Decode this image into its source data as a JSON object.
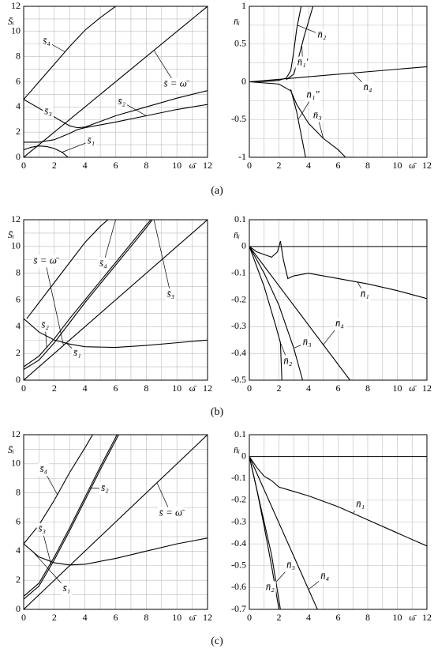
{
  "panel_labels": [
    "(a)",
    "(b)",
    "(c)"
  ],
  "chart_data": [
    {
      "type": "line",
      "ylabel": "S̄ᵢ",
      "xlabel": "ω̄",
      "xlim": [
        0,
        12
      ],
      "ylim": [
        0,
        12
      ],
      "xticks": [
        0,
        2,
        4,
        6,
        8,
        10,
        12
      ],
      "yticks": [
        0,
        2,
        4,
        6,
        8,
        10,
        12
      ],
      "minor_xticks": [
        1,
        3,
        5,
        7,
        9,
        11
      ],
      "minor_yticks": [
        1,
        3,
        5,
        7,
        9,
        11
      ],
      "grid": true,
      "series": [
        {
          "name": "s̄ = ω̄",
          "color": "#000",
          "x": [
            0,
            12
          ],
          "values": [
            0,
            12
          ]
        },
        {
          "name": "s̄₄",
          "color": "#000",
          "x": [
            0,
            1,
            2,
            3,
            4,
            5,
            6
          ],
          "values": [
            4.6,
            6,
            7.4,
            8.8,
            10.1,
            11.1,
            12
          ]
        },
        {
          "name": "s̄₃",
          "color": "#000",
          "x": [
            0,
            1,
            2,
            3,
            3.5,
            4,
            6,
            8,
            10,
            12
          ],
          "values": [
            4.6,
            3.9,
            3.2,
            2.5,
            2.35,
            2.4,
            3.3,
            4.0,
            4.7,
            5.3
          ]
        },
        {
          "name": "s̄₂",
          "color": "#000",
          "x": [
            0,
            1,
            2,
            3,
            3.5,
            4,
            6,
            8,
            10,
            12
          ],
          "values": [
            1.2,
            1.2,
            1.4,
            1.9,
            2.2,
            2.35,
            2.8,
            3.3,
            3.8,
            4.2
          ]
        },
        {
          "name": "s̄₁",
          "color": "#000",
          "x": [
            0,
            0.5,
            1,
            1.5,
            2,
            2.5,
            2.9
          ],
          "values": [
            0.6,
            0.8,
            0.9,
            0.85,
            0.7,
            0.4,
            0
          ]
        }
      ]
    },
    {
      "type": "line",
      "ylabel": "n̄ᵢ",
      "xlabel": "ω̄",
      "xlim": [
        0,
        12
      ],
      "ylim": [
        -1,
        1
      ],
      "xticks": [
        0,
        2,
        4,
        6,
        8,
        10,
        12
      ],
      "yticks": [
        -1,
        -0.5,
        0,
        0.5,
        1
      ],
      "minor_xticks": [
        1,
        3,
        5,
        7,
        9,
        11
      ],
      "minor_yticks": [
        -0.75,
        -0.25,
        0.25,
        0.75
      ],
      "grid": true,
      "series": [
        {
          "name": "n̄₂",
          "color": "#000",
          "x": [
            0,
            1,
            2,
            2.5,
            2.8,
            3,
            3.2,
            3.5
          ],
          "values": [
            0,
            0.005,
            0.02,
            0.05,
            0.15,
            0.4,
            0.7,
            1.0
          ]
        },
        {
          "name": "n̄₁′",
          "color": "#000",
          "x": [
            2.5,
            3,
            3.3,
            3.7,
            4.3
          ],
          "values": [
            0.03,
            0.1,
            0.3,
            0.6,
            1.0
          ]
        },
        {
          "name": "n̄₄",
          "color": "#000",
          "x": [
            0,
            12
          ],
          "values": [
            0,
            0.2
          ]
        },
        {
          "name": "n̄₁″",
          "color": "#000",
          "x": [
            2.8,
            3.2,
            3.5,
            3.8
          ],
          "values": [
            -0.1,
            -0.4,
            -0.7,
            -1
          ]
        },
        {
          "name": "n̄₃",
          "color": "#000",
          "x": [
            0,
            2,
            2.8,
            3.2,
            4,
            5,
            6,
            6.5
          ],
          "values": [
            0,
            -0.03,
            -0.12,
            -0.3,
            -0.55,
            -0.75,
            -0.9,
            -1
          ]
        }
      ]
    },
    {
      "type": "line",
      "ylabel": "S̄ᵢ",
      "xlabel": "ω̄",
      "xlim": [
        0,
        12
      ],
      "ylim": [
        0,
        12
      ],
      "xticks": [
        0,
        2,
        4,
        6,
        8,
        10,
        12
      ],
      "yticks": [
        0,
        2,
        4,
        6,
        8,
        10,
        12
      ],
      "minor_xticks": [
        1,
        3,
        5,
        7,
        9,
        11
      ],
      "minor_yticks": [
        1,
        3,
        5,
        7,
        9,
        11
      ],
      "grid": true,
      "series": [
        {
          "name": "s̄ = ω̄",
          "color": "#000",
          "x": [
            0,
            12
          ],
          "values": [
            0,
            12
          ]
        },
        {
          "name": "s̄₄",
          "color": "#000",
          "x": [
            0.2,
            1,
            2,
            3,
            4,
            5,
            5.5
          ],
          "values": [
            4.6,
            5.8,
            7.3,
            8.8,
            10.3,
            11.5,
            12
          ]
        },
        {
          "name": "s̄₂",
          "color": "#000",
          "x": [
            0,
            1,
            2,
            3,
            4,
            5,
            6,
            7,
            8,
            8.3
          ],
          "values": [
            1,
            1.8,
            3.1,
            4.6,
            6,
            7.4,
            8.8,
            10.2,
            11.6,
            12
          ]
        },
        {
          "name": "s̄₃",
          "color": "#000",
          "x": [
            0,
            1,
            2,
            3,
            4,
            5,
            6,
            7,
            8,
            8.4
          ],
          "values": [
            0.8,
            1.5,
            2.8,
            4.3,
            5.8,
            7.2,
            8.6,
            10,
            11.4,
            12
          ]
        },
        {
          "name": "s̄₁",
          "color": "#000",
          "x": [
            0,
            1,
            2,
            3,
            4,
            6,
            8,
            10,
            12
          ],
          "values": [
            4.6,
            3.6,
            3.0,
            2.7,
            2.5,
            2.45,
            2.6,
            2.8,
            3.0
          ]
        }
      ]
    },
    {
      "type": "line",
      "ylabel": "n̄ᵢ",
      "xlabel": "ω̄",
      "xlim": [
        0,
        12
      ],
      "ylim": [
        -0.5,
        0.1
      ],
      "xticks": [
        0,
        2,
        4,
        6,
        8,
        10,
        12
      ],
      "yticks": [
        0.1,
        0,
        -0.1,
        -0.2,
        -0.3,
        -0.4,
        -0.5
      ],
      "minor_xticks": [
        1,
        3,
        5,
        7,
        9,
        11
      ],
      "grid": true,
      "zero_line": true,
      "series": [
        {
          "name": "n̄₁",
          "color": "#000",
          "x": [
            0,
            0.5,
            1,
            1.5,
            1.9,
            2.1,
            2.3,
            2.6,
            3,
            4,
            6,
            8,
            10,
            12
          ],
          "values": [
            0,
            -0.02,
            -0.03,
            -0.04,
            -0.02,
            0.02,
            -0.05,
            -0.12,
            -0.11,
            -0.1,
            -0.12,
            -0.14,
            -0.165,
            -0.195
          ]
        },
        {
          "name": "n̄₄",
          "color": "#000",
          "x": [
            0,
            6.8
          ],
          "values": [
            0,
            -0.5
          ]
        },
        {
          "name": "n̄₃",
          "color": "#000",
          "x": [
            0,
            1,
            2,
            2.5,
            3,
            3.6
          ],
          "values": [
            0,
            -0.1,
            -0.22,
            -0.3,
            -0.38,
            -0.5
          ]
        },
        {
          "name": "n̄₂",
          "color": "#000",
          "x": [
            0,
            1,
            1.8,
            2.1,
            2.2
          ],
          "values": [
            0,
            -0.15,
            -0.3,
            -0.36,
            -0.5
          ]
        }
      ]
    },
    {
      "type": "line",
      "ylabel": "S̄ᵢ",
      "xlabel": "ω̄",
      "xlim": [
        0,
        12
      ],
      "ylim": [
        0,
        12
      ],
      "xticks": [
        0,
        2,
        4,
        6,
        8,
        10,
        12
      ],
      "yticks": [
        0,
        2,
        4,
        6,
        8,
        10,
        12
      ],
      "minor_xticks": [
        1,
        3,
        5,
        7,
        9,
        11
      ],
      "minor_yticks": [
        1,
        3,
        5,
        7,
        9,
        11
      ],
      "grid": true,
      "series": [
        {
          "name": "s̄₄",
          "color": "#000",
          "x": [
            0,
            1,
            2,
            3,
            4,
            4.5
          ],
          "values": [
            4.5,
            5.8,
            7.5,
            9.4,
            11.1,
            12
          ]
        },
        {
          "name": "s̄₂",
          "color": "#000",
          "x": [
            0,
            1,
            2,
            3,
            4,
            5,
            6,
            6.1
          ],
          "values": [
            0.9,
            1.8,
            3.6,
            5.6,
            7.7,
            9.8,
            11.8,
            12
          ]
        },
        {
          "name": "s̄₃",
          "color": "#000",
          "x": [
            0,
            1,
            2,
            3,
            4,
            5,
            6,
            6.2
          ],
          "values": [
            0.7,
            1.6,
            3.4,
            5.4,
            7.5,
            9.6,
            11.6,
            12
          ]
        },
        {
          "name": "s̄ = ω̄",
          "color": "#000",
          "x": [
            0,
            12
          ],
          "values": [
            0,
            12
          ]
        },
        {
          "name": "s̄₁",
          "color": "#000",
          "x": [
            0,
            1,
            2,
            3,
            4,
            6,
            8,
            10,
            12
          ],
          "values": [
            4.5,
            3.6,
            3.2,
            3.05,
            3.1,
            3.5,
            4.0,
            4.5,
            4.9
          ]
        }
      ]
    },
    {
      "type": "line",
      "ylabel": "n̄ᵢ",
      "xlabel": "ω̄",
      "xlim": [
        0,
        12
      ],
      "ylim": [
        -0.7,
        0.1
      ],
      "xticks": [
        0,
        2,
        4,
        6,
        8,
        10,
        12
      ],
      "yticks": [
        0.1,
        0,
        -0.1,
        -0.2,
        -0.3,
        -0.4,
        -0.5,
        -0.6,
        -0.7
      ],
      "minor_xticks": [
        1,
        3,
        5,
        7,
        9,
        11
      ],
      "grid": true,
      "zero_line": true,
      "series": [
        {
          "name": "n̄₁",
          "color": "#000",
          "x": [
            0,
            0.5,
            1,
            1.5,
            2,
            3,
            4,
            6,
            8,
            10,
            12
          ],
          "values": [
            0,
            -0.05,
            -0.09,
            -0.11,
            -0.14,
            -0.16,
            -0.18,
            -0.23,
            -0.29,
            -0.35,
            -0.41
          ]
        },
        {
          "name": "n̄₃",
          "color": "#000",
          "x": [
            0,
            1,
            1.5,
            2.1
          ],
          "values": [
            0,
            -0.3,
            -0.45,
            -0.7
          ]
        },
        {
          "name": "n̄₂",
          "color": "#000",
          "x": [
            0,
            0.5,
            1,
            1.5,
            2
          ],
          "values": [
            0,
            -0.15,
            -0.32,
            -0.5,
            -0.7
          ]
        },
        {
          "name": "n̄₄",
          "color": "#000",
          "x": [
            0,
            4.6
          ],
          "values": [
            0,
            -0.7
          ]
        }
      ]
    }
  ]
}
